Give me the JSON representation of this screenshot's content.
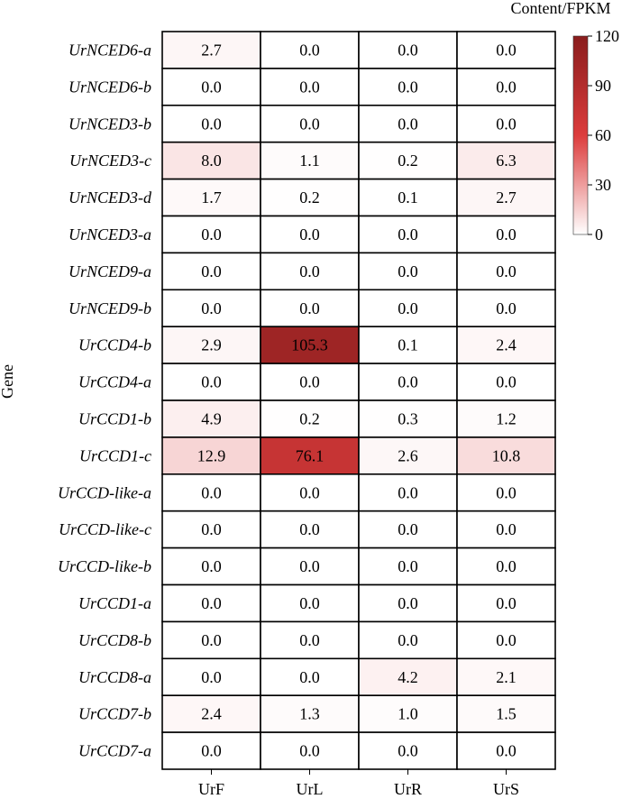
{
  "chart_data": {
    "type": "heatmap",
    "title": "",
    "xlabel": "",
    "ylabel": "Gene",
    "colorbar_label": "Content/FPKM",
    "colorbar_ticks": [
      0,
      30,
      60,
      90,
      120
    ],
    "value_range": [
      0,
      120
    ],
    "color_low": "#ffffff",
    "color_mid": "#dc3c3c",
    "color_high": "#8a1d1d",
    "columns": [
      "UrF",
      "UrL",
      "UrR",
      "UrS"
    ],
    "rows": [
      {
        "gene": "UrNCED6-a",
        "values": [
          2.7,
          0.0,
          0.0,
          0.0
        ]
      },
      {
        "gene": "UrNCED6-b",
        "values": [
          0.0,
          0.0,
          0.0,
          0.0
        ]
      },
      {
        "gene": "UrNCED3-b",
        "values": [
          0.0,
          0.0,
          0.0,
          0.0
        ]
      },
      {
        "gene": "UrNCED3-c",
        "values": [
          8.0,
          1.1,
          0.2,
          6.3
        ]
      },
      {
        "gene": "UrNCED3-d",
        "values": [
          1.7,
          0.2,
          0.1,
          2.7
        ]
      },
      {
        "gene": "UrNCED3-a",
        "values": [
          0.0,
          0.0,
          0.0,
          0.0
        ]
      },
      {
        "gene": "UrNCED9-a",
        "values": [
          0.0,
          0.0,
          0.0,
          0.0
        ]
      },
      {
        "gene": "UrNCED9-b",
        "values": [
          0.0,
          0.0,
          0.0,
          0.0
        ]
      },
      {
        "gene": "UrCCD4-b",
        "values": [
          2.9,
          105.3,
          0.1,
          2.4
        ]
      },
      {
        "gene": "UrCCD4-a",
        "values": [
          0.0,
          0.0,
          0.0,
          0.0
        ]
      },
      {
        "gene": "UrCCD1-b",
        "values": [
          4.9,
          0.2,
          0.3,
          1.2
        ]
      },
      {
        "gene": "UrCCD1-c",
        "values": [
          12.9,
          76.1,
          2.6,
          10.8
        ]
      },
      {
        "gene": "UrCCD-like-a",
        "values": [
          0.0,
          0.0,
          0.0,
          0.0
        ]
      },
      {
        "gene": "UrCCD-like-c",
        "values": [
          0.0,
          0.0,
          0.0,
          0.0
        ]
      },
      {
        "gene": "UrCCD-like-b",
        "values": [
          0.0,
          0.0,
          0.0,
          0.0
        ]
      },
      {
        "gene": "UrCCD1-a",
        "values": [
          0.0,
          0.0,
          0.0,
          0.0
        ]
      },
      {
        "gene": "UrCCD8-b",
        "values": [
          0.0,
          0.0,
          0.0,
          0.0
        ]
      },
      {
        "gene": "UrCCD8-a",
        "values": [
          0.0,
          0.0,
          4.2,
          2.1
        ]
      },
      {
        "gene": "UrCCD7-b",
        "values": [
          2.4,
          1.3,
          1.0,
          1.5
        ]
      },
      {
        "gene": "UrCCD7-a",
        "values": [
          0.0,
          0.0,
          0.0,
          0.0
        ]
      }
    ]
  }
}
